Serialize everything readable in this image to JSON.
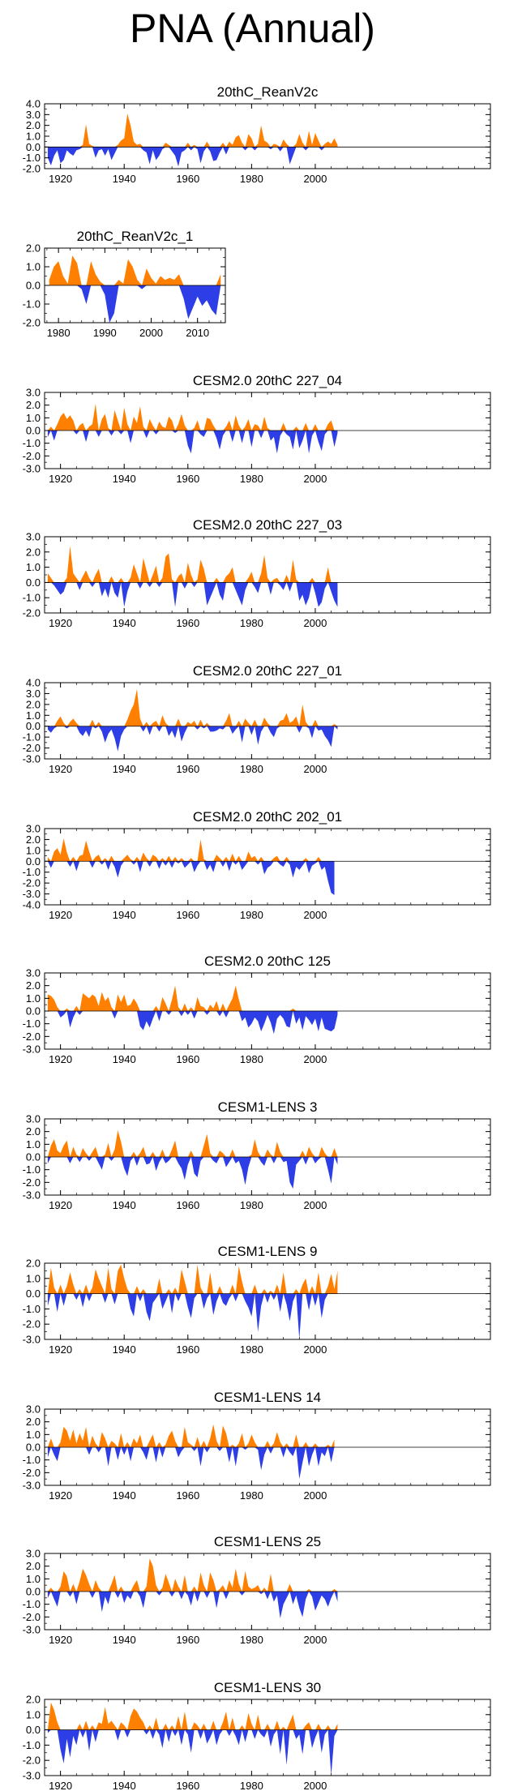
{
  "page_title": "PNA (Annual)",
  "colors": {
    "positive": "#ff8000",
    "negative": "#2d3ee6",
    "axis": "#000000"
  },
  "chart_data": [
    {
      "type": "area",
      "title": "20thC_ReanV2c",
      "x_range": [
        1915,
        2055
      ],
      "xticks": [
        1920,
        1940,
        1960,
        1980,
        2000
      ],
      "ylim": [
        -2.0,
        4.0
      ],
      "yticks": [
        "4.0",
        "3.0",
        "2.0",
        "1.0",
        "0.0",
        "-1.0",
        "-2.0"
      ],
      "start_year": 1916,
      "values": [
        -1.0,
        -1.7,
        -0.8,
        -0.3,
        -1.5,
        -1.2,
        -0.3,
        -0.6,
        -0.8,
        -0.3,
        -0.2,
        0.2,
        2.1,
        0.3,
        0.1,
        -1.0,
        -0.3,
        -0.2,
        -0.8,
        -0.2,
        -1.2,
        -0.6,
        0.2,
        0.6,
        0.8,
        3.1,
        2.0,
        0.5,
        0.2,
        0.3,
        -0.3,
        -0.5,
        -1.6,
        -0.3,
        -1.2,
        -0.8,
        -0.2,
        0.4,
        0.2,
        -0.4,
        -0.8,
        -1.8,
        -0.5,
        -0.3,
        0.4,
        -0.3,
        0.2,
        -0.2,
        -1.5,
        -0.4,
        0.5,
        -0.4,
        -1.3,
        -1.2,
        -0.5,
        0.4,
        -0.7,
        0.5,
        0.2,
        0.9,
        1.1,
        0.4,
        -0.3,
        1.2,
        0.8,
        -0.3,
        0.3,
        2.0,
        0.6,
        0.4,
        -0.2,
        0.3,
        0.2,
        -0.4,
        0.7,
        0.3,
        -1.6,
        -0.8,
        0.3,
        1.2,
        0.4,
        -0.3,
        1.5,
        0.2,
        1.3,
        0.6,
        -0.3,
        0.3,
        0.5,
        0.3,
        0.8,
        0.2
      ]
    },
    {
      "type": "area",
      "title": "20thC_ReanV2c_1",
      "x_range": [
        1977,
        2016
      ],
      "xticks": [
        1980,
        1990,
        2000,
        2010
      ],
      "ylim": [
        -2.0,
        2.0
      ],
      "yticks": [
        "2.0",
        "1.0",
        "0.0",
        "-1.0",
        "-2.0"
      ],
      "start_year": 1978,
      "values": [
        0.3,
        1.0,
        1.3,
        0.5,
        0.1,
        1.6,
        1.2,
        -0.2,
        -1.0,
        1.3,
        0.6,
        0.2,
        -0.5,
        -2.0,
        -1.5,
        0.3,
        0.1,
        1.4,
        1.0,
        0.3,
        -0.2,
        0.9,
        0.4,
        0.1,
        0.5,
        0.3,
        0.4,
        0.3,
        0.6,
        -0.7,
        -1.8,
        -1.2,
        -0.6,
        -1.1,
        -0.8,
        -1.3,
        -1.6,
        0.6
      ]
    },
    {
      "type": "area",
      "title": "CESM2.0 20thC 227_04",
      "x_range": [
        1915,
        2055
      ],
      "xticks": [
        1920,
        1940,
        1960,
        1980,
        2000
      ],
      "ylim": [
        -3.0,
        3.0
      ],
      "yticks": [
        "3.0",
        "2.0",
        "1.0",
        "0.0",
        "-1.0",
        "-2.0",
        "-3.0"
      ],
      "start_year": 1916,
      "values": [
        -0.5,
        0.3,
        -0.8,
        0.5,
        1.1,
        1.4,
        0.9,
        1.2,
        0.8,
        -0.3,
        0.4,
        0.6,
        -0.9,
        0.3,
        0.5,
        2.1,
        -0.5,
        0.9,
        1.3,
        0.2,
        -0.4,
        1.6,
        0.8,
        -0.3,
        1.8,
        0.5,
        -1.0,
        1.1,
        0.6,
        1.9,
        0.3,
        -0.6,
        0.9,
        0.4,
        -0.3,
        0.7,
        0.3,
        0.2,
        1.1,
        0.8,
        -0.2,
        0.5,
        1.3,
        0.4,
        -1.2,
        -1.8,
        0.2,
        0.8,
        -0.3,
        -0.5,
        1.0,
        0.9,
        0.4,
        -0.6,
        -1.5,
        -0.4,
        0.3,
        0.8,
        -0.9,
        1.2,
        0.4,
        -1.0,
        0.3,
        0.9,
        -1.3,
        0.5,
        0.4,
        -0.6,
        1.1,
        0.2,
        -0.8,
        -0.5,
        -1.8,
        -0.4,
        0.6,
        -0.3,
        -0.5,
        -1.5,
        0.3,
        -1.4,
        -0.8,
        0.6,
        -1.8,
        -0.4,
        0.5,
        -0.9,
        -1.6,
        -0.3,
        0.5,
        0.8,
        -1.3,
        -0.2
      ]
    },
    {
      "type": "area",
      "title": "CESM2.0 20thC 227_03",
      "x_range": [
        1915,
        2055
      ],
      "xticks": [
        1920,
        1940,
        1960,
        1980,
        2000
      ],
      "ylim": [
        -2.0,
        3.0
      ],
      "yticks": [
        "3.0",
        "2.0",
        "1.0",
        "0.0",
        "-1.0",
        "-2.0"
      ],
      "start_year": 1916,
      "values": [
        0.6,
        0.3,
        -0.2,
        -0.5,
        -0.8,
        -0.6,
        0.3,
        2.4,
        0.6,
        0.3,
        -0.5,
        0.4,
        0.8,
        0.3,
        -0.3,
        0.5,
        0.9,
        -0.9,
        -0.4,
        -1.0,
        0.4,
        -0.7,
        -1.0,
        0.3,
        -1.6,
        -0.6,
        0.3,
        1.2,
        0.6,
        -0.4,
        1.6,
        0.8,
        -0.3,
        0.5,
        1.1,
        -0.3,
        0.3,
        1.7,
        1.9,
        0.2,
        -1.6,
        0.4,
        0.6,
        -0.4,
        1.3,
        0.5,
        -0.3,
        0.2,
        1.5,
        0.9,
        -1.5,
        -1.0,
        -0.5,
        0.3,
        -0.8,
        -1.2,
        0.4,
        0.6,
        1.0,
        -0.5,
        -1.0,
        -1.5,
        -0.5,
        0.3,
        0.7,
        -0.3,
        -0.7,
        0.6,
        1.8,
        0.3,
        -0.8,
        0.2,
        0.3,
        -0.2,
        -0.5,
        0.5,
        -0.6,
        1.5,
        0.2,
        -1.2,
        -0.8,
        -1.5,
        -1.0,
        0.3,
        -0.7,
        -1.6,
        -1.3,
        -0.4,
        1.0,
        -0.6,
        -1.2,
        -1.6
      ]
    },
    {
      "type": "area",
      "title": "CESM2.0 20thC 227_01",
      "x_range": [
        1915,
        2055
      ],
      "xticks": [
        1920,
        1940,
        1960,
        1980,
        2000
      ],
      "ylim": [
        -3.0,
        4.0
      ],
      "yticks": [
        "4.0",
        "3.0",
        "2.0",
        "1.0",
        "0.0",
        "-1.0",
        "-2.0",
        "-3.0"
      ],
      "start_year": 1916,
      "values": [
        -0.3,
        -0.6,
        -0.2,
        0.5,
        0.9,
        0.3,
        -0.2,
        0.4,
        0.7,
        0.3,
        -0.6,
        -0.9,
        -0.4,
        -1.0,
        0.6,
        -0.2,
        0.4,
        -0.5,
        -1.5,
        -0.7,
        -0.3,
        -1.1,
        -2.3,
        -0.9,
        -0.3,
        0.6,
        1.4,
        2.0,
        3.4,
        0.7,
        -0.5,
        0.4,
        -0.8,
        0.3,
        0.5,
        -0.5,
        1.0,
        0.3,
        -0.9,
        -0.4,
        -1.1,
        0.7,
        -1.4,
        -0.6,
        0.4,
        0.2,
        0.5,
        -0.3,
        0.6,
        -0.2,
        0.3,
        -0.5,
        -0.5,
        -0.4,
        -0.2,
        -0.3,
        0.5,
        1.2,
        -0.7,
        -0.3,
        0.5,
        -1.5,
        0.7,
        0.3,
        -0.8,
        0.6,
        -1.7,
        -0.5,
        0.8,
        0.3,
        -0.6,
        -1.0,
        -0.2,
        0.5,
        0.6,
        1.2,
        0.3,
        0.5,
        0.9,
        -0.6,
        2.0,
        0.4,
        -0.2,
        -1.1,
        0.6,
        -0.4,
        -0.3,
        -0.9,
        -1.3,
        -1.9,
        0.2,
        -0.3
      ]
    },
    {
      "type": "area",
      "title": "CESM2.0 20thC 202_01",
      "x_range": [
        1915,
        2055
      ],
      "xticks": [
        1920,
        1940,
        1960,
        1980,
        2000
      ],
      "ylim": [
        -4.0,
        3.0
      ],
      "yticks": [
        "3.0",
        "2.0",
        "1.0",
        "0.0",
        "-1.0",
        "-2.0",
        "-3.0",
        "-4.0"
      ],
      "start_year": 1916,
      "values": [
        0.4,
        -0.6,
        0.9,
        1.2,
        0.6,
        2.1,
        0.8,
        -0.5,
        0.4,
        -0.9,
        0.5,
        0.6,
        1.9,
        0.9,
        -0.6,
        0.4,
        0.6,
        -0.3,
        0.3,
        -0.8,
        0.5,
        -0.5,
        -1.5,
        -0.4,
        0.3,
        0.6,
        0.2,
        -0.3,
        0.4,
        -1.0,
        0.8,
        0.3,
        -0.5,
        0.6,
        0.4,
        -0.7,
        0.3,
        -0.4,
        0.5,
        -0.6,
        0.4,
        -0.2,
        0.3,
        -0.6,
        -0.3,
        0.3,
        -1.0,
        -0.4,
        2.0,
        0.2,
        -0.8,
        -0.3,
        -1.0,
        0.6,
        0.3,
        -0.5,
        0.4,
        -0.9,
        0.7,
        -0.3,
        0.5,
        -0.8,
        -0.4,
        0.9,
        0.3,
        0.5,
        -0.3,
        0.4,
        -1.2,
        -0.6,
        -0.4,
        0.3,
        0.5,
        -0.3,
        -0.5,
        0.4,
        -0.3,
        -1.5,
        -0.5,
        -0.8,
        -0.4,
        0.3,
        -1.1,
        -0.4,
        -0.2,
        0.4,
        -0.8,
        -0.5,
        -1.8,
        -2.9,
        -3.1
      ]
    },
    {
      "type": "area",
      "title": "CESM2.0 20thC 125",
      "x_range": [
        1915,
        2055
      ],
      "xticks": [
        1920,
        1940,
        1960,
        1980,
        2000
      ],
      "ylim": [
        -3.0,
        3.0
      ],
      "yticks": [
        "3.0",
        "2.0",
        "1.0",
        "0.0",
        "-1.0",
        "-2.0",
        "-3.0"
      ],
      "start_year": 1916,
      "values": [
        1.3,
        1.2,
        0.9,
        0.3,
        -0.5,
        -0.3,
        0.2,
        -1.3,
        -0.5,
        0.4,
        -0.3,
        1.4,
        1.2,
        1.0,
        1.3,
        1.1,
        0.4,
        1.5,
        0.8,
        1.1,
        0.3,
        -0.6,
        1.3,
        0.7,
        1.3,
        0.4,
        0.5,
        1.0,
        0.6,
        -1.2,
        -1.5,
        -0.8,
        -1.3,
        -0.6,
        0.4,
        -0.8,
        1.1,
        0.6,
        -0.3,
        0.9,
        2.0,
        0.3,
        -0.4,
        0.6,
        -0.3,
        0.3,
        -0.6,
        1.1,
        0.4,
        0.3,
        -0.3,
        0.5,
        0.2,
        0.8,
        -0.4,
        0.6,
        -0.5,
        0.5,
        1.0,
        2.0,
        0.9,
        -0.8,
        -0.5,
        -1.3,
        -1.0,
        -0.5,
        -0.8,
        -1.6,
        -1.0,
        -0.3,
        -0.9,
        -1.8,
        -0.6,
        -0.3,
        -0.6,
        -1.2,
        -1.3,
        0.2,
        -1.0,
        -0.5,
        -1.5,
        -0.4,
        -0.7,
        -1.1,
        -0.6,
        -1.6,
        -0.5,
        -1.4,
        -1.5,
        -1.6,
        -1.4,
        -0.3
      ]
    },
    {
      "type": "area",
      "title": "CESM1-LENS 3",
      "x_range": [
        1915,
        2055
      ],
      "xticks": [
        1920,
        1940,
        1960,
        1980,
        2000
      ],
      "ylim": [
        -3.0,
        3.0
      ],
      "yticks": [
        "3.0",
        "2.0",
        "1.0",
        "0.0",
        "-1.0",
        "-2.0",
        "-3.0"
      ],
      "start_year": 1916,
      "values": [
        -0.5,
        0.9,
        1.4,
        0.5,
        0.3,
        0.9,
        1.3,
        -0.5,
        0.8,
        0.2,
        -0.4,
        0.7,
        0.3,
        -0.3,
        0.4,
        0.8,
        -0.5,
        -1.0,
        0.2,
        1.1,
        -0.3,
        0.6,
        2.1,
        1.2,
        -0.9,
        -1.5,
        -0.3,
        0.4,
        -0.7,
        0.3,
        0.8,
        -0.6,
        -0.5,
        0.4,
        -1.1,
        -0.4,
        0.6,
        -0.5,
        -0.3,
        0.6,
        1.3,
        -0.5,
        -0.9,
        -1.8,
        -0.6,
        0.5,
        -1.3,
        -1.6,
        -0.3,
        0.9,
        1.8,
        0.3,
        -0.3,
        -0.5,
        0.5,
        0.3,
        -0.8,
        -0.4,
        0.6,
        -0.5,
        -0.3,
        -1.0,
        -2.2,
        -0.8,
        0.2,
        1.4,
        0.4,
        -0.4,
        -0.7,
        0.6,
        0.2,
        -0.5,
        1.2,
        0.4,
        -0.4,
        -0.3,
        -2.0,
        -2.5,
        -0.6,
        -0.3,
        0.5,
        -0.6,
        0.8,
        0.3,
        -0.5,
        -0.2,
        0.8,
        0.3,
        -1.0,
        -2.1,
        0.7,
        -0.6
      ]
    },
    {
      "type": "area",
      "title": "CESM1-LENS 9",
      "x_range": [
        1915,
        2055
      ],
      "xticks": [
        1920,
        1940,
        1960,
        1980,
        2000
      ],
      "ylim": [
        -3.0,
        2.0
      ],
      "yticks": [
        "2.0",
        "1.0",
        "0.0",
        "-1.0",
        "-2.0",
        "-3.0"
      ],
      "start_year": 1916,
      "values": [
        -0.8,
        1.7,
        0.4,
        -1.2,
        0.6,
        -0.8,
        0.5,
        1.4,
        0.6,
        -0.4,
        0.3,
        -0.9,
        0.6,
        -0.5,
        0.4,
        1.6,
        1.0,
        0.5,
        -0.6,
        1.7,
        0.3,
        -0.7,
        1.5,
        1.9,
        1.0,
        0.3,
        -1.0,
        -1.5,
        0.5,
        -0.5,
        0.3,
        -1.2,
        -1.8,
        -0.6,
        -0.3,
        1.0,
        -1.0,
        -0.5,
        0.3,
        -1.3,
        0.4,
        -0.5,
        1.6,
        0.8,
        -0.9,
        -1.6,
        -0.3,
        1.9,
        0.4,
        -1.0,
        -0.3,
        1.4,
        -1.4,
        -0.5,
        0.5,
        -0.6,
        -0.8,
        -0.3,
        0.6,
        -0.5,
        1.8,
        0.8,
        -0.5,
        -0.9,
        -1.5,
        0.6,
        -2.5,
        -0.8,
        0.3,
        -0.6,
        0.2,
        -0.4,
        0.6,
        -1.2,
        1.4,
        -0.7,
        -1.8,
        -0.5,
        0.3,
        -3.0,
        0.6,
        1.0,
        -1.1,
        0.5,
        -0.8,
        1.4,
        -1.6,
        -0.4,
        0.5,
        1.3,
        0.3,
        1.5
      ]
    },
    {
      "type": "area",
      "title": "CESM1-LENS 14",
      "x_range": [
        1915,
        2055
      ],
      "xticks": [
        1920,
        1940,
        1960,
        1980,
        2000
      ],
      "ylim": [
        -3.0,
        3.0
      ],
      "yticks": [
        "3.0",
        "2.0",
        "1.0",
        "0.0",
        "-1.0",
        "-2.0",
        "-3.0"
      ],
      "start_year": 1916,
      "values": [
        -0.8,
        0.7,
        -0.6,
        -1.1,
        0.4,
        1.6,
        1.3,
        0.5,
        1.4,
        0.3,
        1.1,
        0.5,
        1.6,
        -0.6,
        0.9,
        0.3,
        -0.4,
        1.2,
        0.7,
        -1.5,
        0.5,
        0.3,
        -1.0,
        1.1,
        -0.6,
        0.4,
        -1.1,
        0.7,
        0.3,
        1.0,
        -0.4,
        -1.0,
        0.5,
        1.0,
        -1.2,
        0.4,
        -0.8,
        0.2,
        0.9,
        1.3,
        0.5,
        -0.8,
        -0.3,
        1.6,
        0.4,
        0.2,
        -0.3,
        0.8,
        -1.5,
        0.5,
        -0.4,
        0.7,
        1.8,
        0.5,
        -0.3,
        1.7,
        1.1,
        -1.2,
        0.2,
        -1.5,
        0.3,
        1.1,
        -0.2,
        0.3,
        1.0,
        0.4,
        -0.2,
        -1.8,
        -0.6,
        0.5,
        -0.5,
        0.3,
        1.2,
        0.4,
        -0.8,
        0.3,
        -0.4,
        -0.7,
        1.0,
        -2.5,
        -1.2,
        0.4,
        -1.5,
        -0.6,
        0.3,
        -1.5,
        -0.4,
        -0.7,
        0.2,
        -1.2,
        0.6
      ]
    },
    {
      "type": "area",
      "title": "CESM1-LENS 25",
      "x_range": [
        1915,
        2055
      ],
      "xticks": [
        1920,
        1940,
        1960,
        1980,
        2000
      ],
      "ylim": [
        -3.0,
        3.0
      ],
      "yticks": [
        "3.0",
        "2.0",
        "1.0",
        "0.0",
        "-1.0",
        "-2.0",
        "-3.0"
      ],
      "start_year": 1916,
      "values": [
        -0.5,
        0.3,
        -0.6,
        -1.2,
        0.4,
        1.6,
        1.2,
        -0.4,
        0.6,
        -1.0,
        0.8,
        1.8,
        1.3,
        0.6,
        -0.5,
        0.9,
        0.3,
        -1.6,
        -0.4,
        -1.0,
        0.6,
        1.3,
        -0.5,
        0.4,
        -0.9,
        -0.3,
        -0.6,
        0.5,
        0.9,
        -0.4,
        -1.3,
        0.4,
        2.6,
        2.0,
        0.5,
        -0.3,
        0.3,
        1.4,
        0.7,
        -0.4,
        1.0,
        0.4,
        -0.6,
        1.3,
        -0.3,
        -1.1,
        0.4,
        -0.8,
        1.5,
        0.5,
        -0.5,
        1.5,
        0.9,
        -1.3,
        0.2,
        0.5,
        -0.6,
        0.9,
        0.3,
        1.8,
        0.6,
        -0.3,
        1.6,
        0.4,
        0.2,
        0.3,
        0.5,
        -0.2,
        0.3,
        -0.6,
        1.4,
        -0.8,
        -0.3,
        -2.1,
        -1.0,
        -0.5,
        0.6,
        -1.0,
        -0.3,
        -1.3,
        -2.0,
        -0.6,
        0.2,
        -0.4,
        -1.5,
        -0.9,
        -0.3,
        -0.6,
        -1.2,
        -0.5,
        0.2,
        -0.8
      ]
    },
    {
      "type": "area",
      "title": "CESM1-LENS 30",
      "x_range": [
        1915,
        2055
      ],
      "xticks": [
        1920,
        1940,
        1960,
        1980,
        2000
      ],
      "ylim": [
        -3.0,
        2.0
      ],
      "yticks": [
        "2.0",
        "1.0",
        "0.0",
        "-1.0",
        "-2.0",
        "-3.0"
      ],
      "start_year": 1916,
      "values": [
        -0.2,
        1.8,
        1.3,
        0.5,
        -1.3,
        -2.2,
        -0.6,
        -1.8,
        -0.4,
        -1.0,
        0.4,
        -0.5,
        0.6,
        -1.4,
        0.3,
        -0.8,
        0.5,
        0.4,
        1.5,
        0.4,
        0.6,
        0.3,
        -0.7,
        0.5,
        0.3,
        -0.5,
        0.9,
        1.4,
        1.2,
        0.8,
        0.5,
        -0.3,
        0.3,
        -0.6,
        0.8,
        -0.3,
        -1.2,
        0.4,
        -0.8,
        0.3,
        -0.4,
        0.9,
        -1.0,
        1.2,
        -0.3,
        -1.5,
        0.5,
        0.3,
        -0.6,
        0.4,
        -0.9,
        -0.5,
        0.6,
        -1.0,
        -0.3,
        0.5,
        1.2,
        -0.4,
        0.8,
        -0.4,
        -1.0,
        0.3,
        -0.8,
        1.1,
        0.4,
        -0.6,
        1.0,
        -0.3,
        -0.5,
        0.4,
        -1.1,
        -0.3,
        0.6,
        -1.6,
        0.2,
        -2.3,
        0.5,
        1.0,
        -0.6,
        -0.3,
        -1.6,
        0.3,
        0.5,
        -1.2,
        -0.5,
        0.4,
        -1.5,
        -0.3,
        0.3,
        -3.0,
        -0.4,
        0.4
      ]
    }
  ]
}
